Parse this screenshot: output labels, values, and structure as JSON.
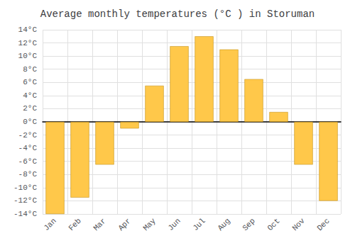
{
  "chart_data": {
    "type": "bar",
    "title": "Average monthly temperatures (°C ) in Storuman",
    "categories": [
      "Jan",
      "Feb",
      "Mar",
      "Apr",
      "May",
      "Jun",
      "Jul",
      "Aug",
      "Sep",
      "Oct",
      "Nov",
      "Dec"
    ],
    "values": [
      -14,
      -11.5,
      -6.5,
      -1,
      5.5,
      11.5,
      13,
      11,
      6.5,
      1.5,
      -6.5,
      -12
    ],
    "color": "#FFC84A",
    "ylim": [
      -14,
      14
    ],
    "yticks": [
      {
        "value": -14,
        "label": "-14°C"
      },
      {
        "value": -12,
        "label": "-12°C"
      },
      {
        "value": -10,
        "label": "-10°C"
      },
      {
        "value": -8,
        "label": "-8°C"
      },
      {
        "value": -6,
        "label": "-6°C"
      },
      {
        "value": -4,
        "label": "-4°C"
      },
      {
        "value": -2,
        "label": "-2°C"
      },
      {
        "value": 0,
        "label": "0°C"
      },
      {
        "value": 2,
        "label": "2°C"
      },
      {
        "value": 4,
        "label": "4°C"
      },
      {
        "value": 6,
        "label": "6°C"
      },
      {
        "value": 8,
        "label": "8°C"
      },
      {
        "value": 10,
        "label": "10°C"
      },
      {
        "value": 12,
        "label": "12°C"
      },
      {
        "value": 14,
        "label": "14°C"
      }
    ],
    "grid": true
  }
}
